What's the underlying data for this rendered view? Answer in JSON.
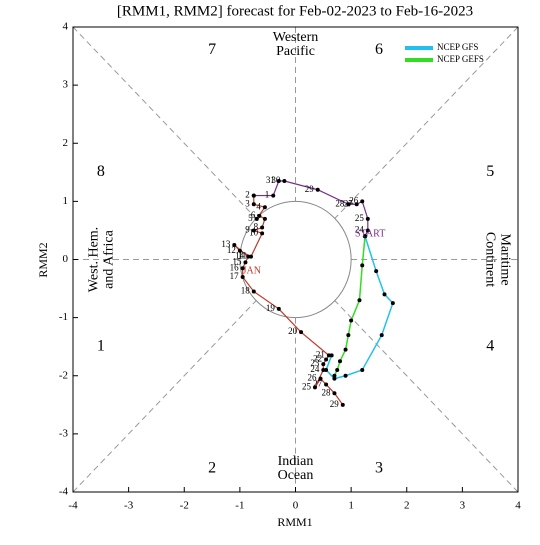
{
  "chart_data": {
    "type": "phase",
    "title": "[RMM1, RMM2] forecast for Feb-02-2023 to Feb-16-2023",
    "xlabel": "RMM1",
    "ylabel": "RMM2",
    "xlim": [
      -4,
      4
    ],
    "ylim": [
      -4,
      4
    ],
    "xticks": [
      -4,
      -3,
      -2,
      -1,
      0,
      1,
      2,
      3,
      4
    ],
    "yticks": [
      -4,
      -3,
      -2,
      -1,
      0,
      1,
      2,
      3,
      4
    ],
    "phases": [
      "1",
      "2",
      "3",
      "4",
      "5",
      "6",
      "7",
      "8"
    ],
    "regions": {
      "top": [
        "Western",
        "Pacific"
      ],
      "bottom": [
        "Indian",
        "Ocean"
      ],
      "left": [
        "West. Hem.",
        "and Africa"
      ],
      "right": [
        "Maritime",
        "Continent"
      ]
    },
    "annotations": {
      "start": "START",
      "jan": "JAN"
    },
    "legend": "upper right",
    "observed": [
      {
        "color": "#c0392b",
        "x": [
          0.85,
          0.7,
          0.55,
          0.45,
          0.35,
          0.5,
          0.5,
          0.55,
          0.6,
          0.1,
          -0.3,
          -0.75,
          -0.95,
          -0.95,
          -0.9,
          -0.85,
          -1.1,
          -1.0,
          -0.8,
          -0.6,
          -0.75,
          -0.6,
          -0.55,
          -0.65,
          -0.7,
          -0.55,
          -0.75,
          -0.75
        ],
        "y": [
          -2.5,
          -2.3,
          -2.15,
          -2.05,
          -2.2,
          -1.9,
          -1.8,
          -1.72,
          -1.65,
          -1.25,
          -0.85,
          -0.55,
          -0.3,
          -0.15,
          -0.05,
          0.05,
          0.25,
          0.15,
          0.05,
          0.45,
          0.5,
          0.55,
          0.7,
          0.75,
          0.7,
          0.9,
          0.95,
          1.1
        ],
        "labels": [
          "29",
          "28",
          "27",
          "26",
          "25",
          "24",
          "23",
          "22",
          "21",
          "20",
          "19",
          "18",
          "17",
          "16",
          "15",
          "14",
          "13",
          "12",
          "11",
          "10",
          "9",
          "8",
          "7",
          "6",
          "5",
          "4",
          "3",
          "2"
        ]
      },
      {
        "color": "#7b2d8e",
        "x": [
          -0.75,
          -0.4,
          -0.3,
          -0.2,
          0.4,
          0.95,
          1.1,
          1.2,
          1.3,
          1.3,
          1.25
        ],
        "y": [
          1.1,
          1.1,
          1.35,
          1.35,
          1.2,
          0.95,
          0.95,
          1.0,
          0.7,
          0.5,
          0.4
        ],
        "labels": [
          null,
          "1",
          "31",
          "30",
          "29",
          "28",
          "27",
          "26",
          "25",
          "24",
          null
        ]
      }
    ],
    "series": [
      {
        "name": "NCEP GFS",
        "color": "#22c0ee",
        "x": [
          1.25,
          1.45,
          1.6,
          1.75,
          1.55,
          1.2,
          0.9,
          0.7,
          0.55,
          0.65
        ],
        "y": [
          0.4,
          -0.2,
          -0.6,
          -0.75,
          -1.3,
          -1.9,
          -2.0,
          -2.05,
          -1.9,
          -1.65
        ]
      },
      {
        "name": "NCEP GEFS",
        "color": "#33dd22",
        "x": [
          1.25,
          1.2,
          1.15,
          1.0,
          0.95,
          0.9,
          0.8,
          0.75,
          0.7
        ],
        "y": [
          0.4,
          -0.1,
          -0.7,
          -1.05,
          -1.3,
          -1.55,
          -1.75,
          -1.9,
          -2.0
        ]
      }
    ]
  }
}
